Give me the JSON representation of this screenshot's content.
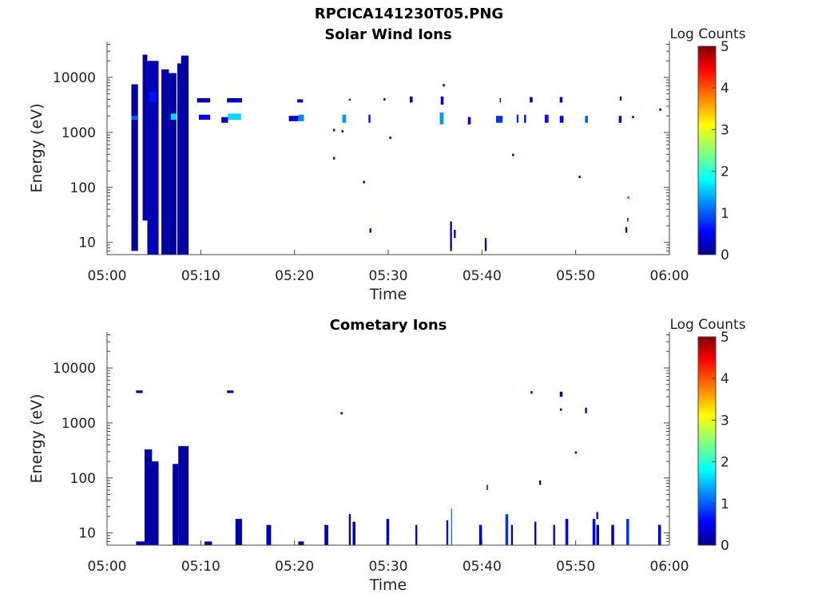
{
  "figure": {
    "title": "RPCICA141230T05.PNG"
  },
  "colormap": {
    "name": "jet",
    "stops": [
      "#00008f",
      "#0000ff",
      "#00ffff",
      "#ffff00",
      "#ff0000",
      "#800000"
    ]
  },
  "chart_data": [
    {
      "type": "heatmap",
      "title": "Solar Wind Ions",
      "xlabel": "Time",
      "ylabel": "Energy (eV)",
      "y_scale": "log",
      "ylim": [
        6,
        45000
      ],
      "xlim": [
        "05:00",
        "06:00"
      ],
      "x_ticks": [
        "05:00",
        "05:10",
        "05:20",
        "05:30",
        "05:40",
        "05:50",
        "06:00"
      ],
      "y_ticks": [
        {
          "value": 10,
          "label": "10"
        },
        {
          "value": 100,
          "label": "100"
        },
        {
          "value": 1000,
          "label": "1000"
        },
        {
          "value": 10000,
          "label": "10000"
        }
      ],
      "colorbar": {
        "label": "Log Counts",
        "range": [
          0,
          5
        ],
        "ticks": [
          "0",
          "1",
          "2",
          "3",
          "4",
          "5"
        ]
      },
      "cells_note": "each cell: [start minute, end minute, low energy eV, high energy eV, log counts]",
      "cells": [
        [
          2.6,
          3.3,
          7,
          7500,
          0.1
        ],
        [
          2.6,
          3.3,
          1700,
          2000,
          1.0
        ],
        [
          3.8,
          4.3,
          25,
          26000,
          0.1
        ],
        [
          4.3,
          5.5,
          6,
          20000,
          0.2
        ],
        [
          4.5,
          5.3,
          3500,
          5500,
          0.6
        ],
        [
          5.8,
          6.6,
          6,
          14000,
          0.1
        ],
        [
          6.6,
          7.4,
          6,
          12000,
          0.1
        ],
        [
          6.8,
          7.4,
          1700,
          2200,
          1.6
        ],
        [
          7.5,
          8.0,
          6,
          18000,
          0.1
        ],
        [
          7.9,
          8.7,
          6,
          25000,
          0.1
        ],
        [
          9.6,
          11.0,
          3500,
          4200,
          0.1
        ],
        [
          9.8,
          11.0,
          1700,
          2100,
          0.5
        ],
        [
          12.2,
          12.9,
          1500,
          1900,
          0.2
        ],
        [
          12.8,
          14.4,
          3500,
          4200,
          0.3
        ],
        [
          12.9,
          14.3,
          1700,
          2200,
          1.6
        ],
        [
          19.4,
          20.4,
          1600,
          2000,
          0.3
        ],
        [
          20.4,
          21.0,
          1600,
          2100,
          1.2
        ],
        [
          20.3,
          20.9,
          3500,
          4000,
          0.2
        ],
        [
          25.1,
          25.5,
          1500,
          2100,
          1.3
        ],
        [
          25.8,
          26.0,
          3800,
          4100,
          0.2
        ],
        [
          27.9,
          28.1,
          1500,
          2100,
          0.5
        ],
        [
          28.0,
          28.2,
          15,
          18,
          0.3
        ],
        [
          29.5,
          29.7,
          3800,
          4200,
          0.3
        ],
        [
          32.3,
          32.6,
          3500,
          4500,
          0.3
        ],
        [
          35.5,
          35.9,
          1400,
          2300,
          1.3
        ],
        [
          35.6,
          35.9,
          3200,
          4500,
          0.5
        ],
        [
          36.6,
          36.8,
          7,
          24,
          0.2
        ],
        [
          37.0,
          37.2,
          12,
          17,
          0.2
        ],
        [
          38.5,
          38.8,
          1400,
          1900,
          0.5
        ],
        [
          40.3,
          40.5,
          7,
          12,
          0.2
        ],
        [
          41.5,
          42.2,
          1500,
          2000,
          0.8
        ],
        [
          41.9,
          42.0,
          3500,
          4200,
          0.2
        ],
        [
          43.7,
          43.9,
          1500,
          2100,
          0.8
        ],
        [
          44.5,
          44.7,
          1500,
          2100,
          0.6
        ],
        [
          45.1,
          45.4,
          3500,
          4400,
          0.4
        ],
        [
          46.7,
          47.1,
          1500,
          2100,
          0.6
        ],
        [
          48.3,
          48.7,
          1500,
          2000,
          0.5
        ],
        [
          48.3,
          48.6,
          3500,
          4400,
          0.3
        ],
        [
          51.0,
          51.3,
          1500,
          2000,
          1.0
        ],
        [
          54.6,
          54.9,
          1500,
          2000,
          0.5
        ],
        [
          54.7,
          54.9,
          3800,
          4500,
          0.3
        ],
        [
          55.3,
          55.5,
          15,
          19,
          0.2
        ],
        [
          55.5,
          55.6,
          24,
          28,
          0.2
        ]
      ],
      "points": [
        [
          35.9,
          7200,
          0.3
        ],
        [
          24.2,
          1100,
          0.3
        ],
        [
          25.1,
          1050,
          0.3
        ],
        [
          30.2,
          800,
          0.3
        ],
        [
          24.2,
          340,
          0.3
        ],
        [
          27.4,
          125,
          0.3
        ],
        [
          43.3,
          390,
          0.3
        ],
        [
          50.4,
          155,
          0.3
        ],
        [
          55.6,
          65,
          1.2
        ],
        [
          59.0,
          2600,
          0.3
        ],
        [
          56.1,
          1900,
          0.3
        ]
      ]
    },
    {
      "type": "heatmap",
      "title": "Cometary Ions",
      "xlabel": "Time",
      "ylabel": "Energy (eV)",
      "y_scale": "log",
      "ylim": [
        6,
        45000
      ],
      "xlim": [
        "05:00",
        "06:00"
      ],
      "x_ticks": [
        "05:00",
        "05:10",
        "05:20",
        "05:30",
        "05:40",
        "05:50",
        "06:00"
      ],
      "y_ticks": [
        {
          "value": 10,
          "label": "10"
        },
        {
          "value": 100,
          "label": "100"
        },
        {
          "value": 1000,
          "label": "1000"
        },
        {
          "value": 10000,
          "label": "10000"
        }
      ],
      "colorbar": {
        "label": "Log Counts",
        "range": [
          0,
          5
        ],
        "ticks": [
          "0",
          "1",
          "2",
          "3",
          "4",
          "5"
        ]
      },
      "cells_note": "each cell: [start minute, end minute, low energy eV, high energy eV, log counts]",
      "cells": [
        [
          3.1,
          3.8,
          3500,
          3900,
          0.1
        ],
        [
          3.1,
          4.7,
          6,
          7,
          0.1
        ],
        [
          4.0,
          4.8,
          6,
          330,
          0.1
        ],
        [
          4.7,
          5.5,
          6,
          200,
          0.1
        ],
        [
          7.0,
          7.6,
          6,
          180,
          0.1
        ],
        [
          7.6,
          8.7,
          6,
          380,
          0.1
        ],
        [
          10.4,
          11.2,
          6,
          7,
          0.1
        ],
        [
          12.8,
          13.5,
          3500,
          3900,
          0.1
        ],
        [
          13.7,
          14.4,
          6,
          18,
          0.2
        ],
        [
          17.0,
          17.5,
          6,
          14,
          0.2
        ],
        [
          20.4,
          21.0,
          6,
          7,
          0.1
        ],
        [
          23.2,
          23.6,
          6,
          14,
          0.2
        ],
        [
          25.8,
          26.0,
          6,
          22,
          0.3
        ],
        [
          26.2,
          26.5,
          6,
          16,
          0.3
        ],
        [
          29.8,
          30.1,
          6,
          18,
          0.3
        ],
        [
          32.9,
          33.1,
          6,
          14,
          0.3
        ],
        [
          36.2,
          36.4,
          6,
          17,
          0.6
        ],
        [
          36.7,
          36.8,
          6,
          28,
          1.2
        ],
        [
          39.7,
          40.0,
          6,
          14,
          0.3
        ],
        [
          40.5,
          40.6,
          60,
          75,
          0.3
        ],
        [
          42.5,
          42.8,
          6,
          22,
          0.8
        ],
        [
          43.1,
          43.3,
          6,
          14,
          0.3
        ],
        [
          45.2,
          45.4,
          3400,
          3800,
          0.2
        ],
        [
          46.1,
          46.3,
          75,
          90,
          0.3
        ],
        [
          45.6,
          45.8,
          6,
          16,
          0.3
        ],
        [
          47.6,
          47.8,
          6,
          14,
          0.3
        ],
        [
          48.3,
          48.6,
          3000,
          3700,
          0.3
        ],
        [
          48.9,
          49.2,
          6,
          18,
          0.5
        ],
        [
          51.0,
          51.2,
          1500,
          1900,
          0.3
        ],
        [
          52.2,
          52.4,
          18,
          24,
          0.3
        ],
        [
          51.8,
          52.1,
          6,
          18,
          0.4
        ],
        [
          52.2,
          52.5,
          6,
          14,
          0.3
        ],
        [
          55.4,
          55.7,
          6,
          18,
          0.8
        ],
        [
          58.8,
          59.1,
          6,
          14,
          0.3
        ],
        [
          53.8,
          54.1,
          6,
          14,
          0.3
        ]
      ],
      "points": [
        [
          25.0,
          1500,
          0.3
        ],
        [
          48.4,
          1750,
          0.3
        ],
        [
          50.0,
          290,
          0.3
        ]
      ]
    }
  ]
}
